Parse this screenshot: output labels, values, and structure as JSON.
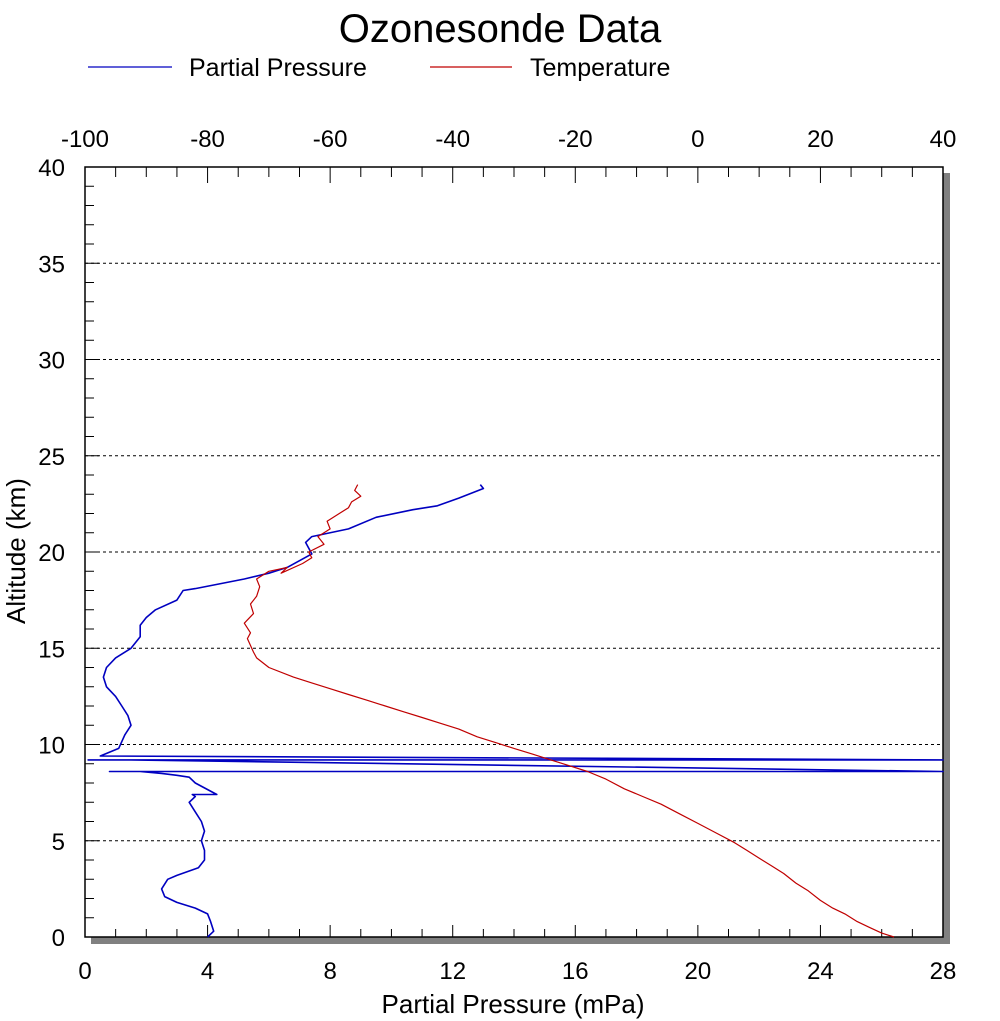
{
  "chart_data": {
    "type": "line",
    "title": "Ozonesonde Data",
    "xlabel": "Partial Pressure (mPa)",
    "ylabel": "Altitude (km)",
    "xlim": [
      0,
      28
    ],
    "ylim": [
      0,
      40
    ],
    "x2lim": [
      -100,
      40
    ],
    "x_ticks": [
      "0",
      "4",
      "8",
      "12",
      "16",
      "20",
      "24",
      "28"
    ],
    "x2_ticks": [
      "-100",
      "-80",
      "-60",
      "-40",
      "-20",
      "0",
      "20",
      "40"
    ],
    "y_ticks": [
      "0",
      "5",
      "10",
      "15",
      "20",
      "25",
      "30",
      "35",
      "40"
    ],
    "grid": "horizontal dotted at 5, 10, 15, 20, 25, 30, 35",
    "legend_position": "top",
    "colors": {
      "partial_pressure": "#0000c0",
      "temperature": "#c00000",
      "shadow": "#808080"
    },
    "series": [
      {
        "name": "Partial Pressure",
        "axis": "bottom",
        "x": [
          4.0,
          4.2,
          4.1,
          4.0,
          3.6,
          3.0,
          2.6,
          2.5,
          2.7,
          3.0,
          3.7,
          3.9,
          3.9,
          3.8,
          3.9,
          3.8,
          3.6,
          3.4,
          3.6,
          3.5,
          4.3,
          3.6,
          3.4,
          3.0,
          2.5,
          1.8,
          0.8,
          28.0,
          1.5,
          0.8,
          0.1,
          28.0,
          0.5,
          1.1,
          1.3,
          1.5,
          1.4,
          1.2,
          1.0,
          0.7,
          0.6,
          0.7,
          1.0,
          1.5,
          1.8,
          1.8,
          2.0,
          2.3,
          3.0,
          3.2,
          3.6,
          5.2,
          6.0,
          6.6,
          7.4,
          7.2,
          7.4,
          8.6,
          9.5,
          10.7,
          11.5,
          12.2,
          13.0,
          12.9
        ],
        "y": [
          0.0,
          0.3,
          0.8,
          1.2,
          1.5,
          1.8,
          2.1,
          2.5,
          3.0,
          3.2,
          3.6,
          4.0,
          4.5,
          5.0,
          5.5,
          6.0,
          6.5,
          7.0,
          7.3,
          7.4,
          7.4,
          8.0,
          8.3,
          8.4,
          8.5,
          8.6,
          8.6,
          8.6,
          9.2,
          9.2,
          9.2,
          9.2,
          9.4,
          9.8,
          10.5,
          11.0,
          11.5,
          12.0,
          12.5,
          13.0,
          13.5,
          14.0,
          14.5,
          15.0,
          15.6,
          16.2,
          16.6,
          17.0,
          17.5,
          18.0,
          18.1,
          18.6,
          18.9,
          19.2,
          19.9,
          20.5,
          20.8,
          21.2,
          21.8,
          22.2,
          22.4,
          22.8,
          23.3,
          23.5
        ]
      },
      {
        "name": "Temperature",
        "axis": "top",
        "x": [
          32.0,
          30.0,
          28.0,
          26.0,
          24.0,
          22.0,
          20.0,
          18.0,
          16.0,
          14.0,
          12.0,
          10.0,
          8.0,
          6.0,
          3.0,
          0.0,
          -3.0,
          -6.0,
          -9.0,
          -12.0,
          -15.0,
          -18.0,
          -21.0,
          -24.0,
          -27.0,
          -30.0,
          -33.0,
          -36.0,
          -39.0,
          -42.0,
          -45.0,
          -48.0,
          -51.0,
          -54.0,
          -57.0,
          -60.0,
          -63.0,
          -66.0,
          -70.0,
          -72.0,
          -72.5,
          -73.5,
          -73.0,
          -74.0,
          -72.5,
          -73.0,
          -72.0,
          -71.5,
          -72.0,
          -70.0,
          -67.0,
          -68.0,
          -64.5,
          -63.0,
          -63.5,
          -61.0,
          -62.0,
          -60.0,
          -60.5,
          -58.5,
          -57.0,
          -56.5,
          -55.0,
          -56.0,
          -55.5
        ],
        "y": [
          0.0,
          0.2,
          0.5,
          0.8,
          1.2,
          1.5,
          1.9,
          2.4,
          2.8,
          3.3,
          3.7,
          4.1,
          4.5,
          4.9,
          5.4,
          5.9,
          6.4,
          6.9,
          7.3,
          7.7,
          8.2,
          8.6,
          8.9,
          9.2,
          9.5,
          9.8,
          10.1,
          10.4,
          10.8,
          11.1,
          11.4,
          11.7,
          12.0,
          12.3,
          12.6,
          12.9,
          13.2,
          13.5,
          14.0,
          14.5,
          14.8,
          15.5,
          15.8,
          16.3,
          16.8,
          17.3,
          17.7,
          18.2,
          18.6,
          19.0,
          19.2,
          18.9,
          19.4,
          19.7,
          20.0,
          20.4,
          20.8,
          21.2,
          21.6,
          22.0,
          22.3,
          22.6,
          22.9,
          23.2,
          23.5
        ]
      }
    ]
  }
}
